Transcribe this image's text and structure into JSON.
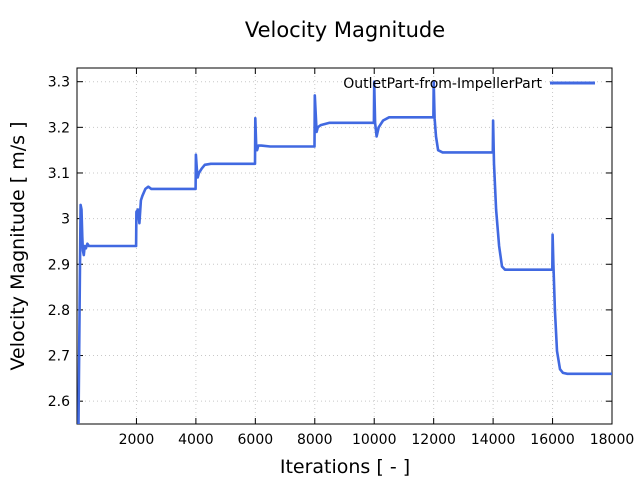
{
  "chart_data": {
    "type": "line",
    "title": "Velocity Magnitude",
    "xlabel": "Iterations [ - ]",
    "ylabel": "Velocity Magnitude [ m/s ]",
    "xlim": [
      0,
      18000
    ],
    "ylim": [
      2.55,
      3.33
    ],
    "xticks": [
      2000,
      4000,
      6000,
      8000,
      10000,
      12000,
      14000,
      16000,
      18000
    ],
    "xtick_labels": [
      "2000",
      "4000",
      "6000",
      "8000",
      "10000",
      "12000",
      "14000",
      "16000",
      "18000"
    ],
    "yticks": [
      2.6,
      2.7,
      2.8,
      2.9,
      3.0,
      3.1,
      3.2,
      3.3
    ],
    "ytick_labels": [
      "2.6",
      "2.7",
      "2.8",
      "2.9",
      "3",
      "3.1",
      "3.2",
      "3.3"
    ],
    "grid": true,
    "legend_position": "top-right",
    "series": [
      {
        "name": "OutletPart-from-ImpellerPart",
        "color": "#4169e1",
        "x": [
          50,
          100,
          120,
          150,
          180,
          200,
          230,
          260,
          300,
          350,
          400,
          500,
          800,
          1000,
          1500,
          1990,
          2000,
          2050,
          2100,
          2150,
          2200,
          2300,
          2400,
          2500,
          2700,
          3000,
          3100,
          3500,
          3990,
          4000,
          4030,
          4060,
          4100,
          4200,
          4300,
          4500,
          5000,
          5200,
          5990,
          6000,
          6030,
          6060,
          6100,
          6200,
          6500,
          7000,
          7100,
          7990,
          8000,
          8030,
          8060,
          8100,
          8200,
          8500,
          9000,
          9500,
          9990,
          10000,
          10030,
          10080,
          10150,
          10300,
          10500,
          11000,
          11990,
          12000,
          12030,
          12080,
          12150,
          12300,
          12500,
          13000,
          13990,
          14000,
          14030,
          14100,
          14200,
          14300,
          14400,
          14500,
          15000,
          15990,
          16000,
          16030,
          16080,
          16150,
          16250,
          16350,
          16500,
          17000,
          18000
        ],
        "values": [
          2.55,
          2.9,
          3.03,
          3.02,
          2.96,
          2.93,
          2.92,
          2.94,
          2.935,
          2.945,
          2.94,
          2.94,
          2.94,
          2.94,
          2.94,
          2.94,
          3.015,
          3.02,
          2.99,
          3.04,
          3.05,
          3.065,
          3.07,
          3.065,
          3.065,
          3.065,
          3.065,
          3.065,
          3.065,
          3.14,
          3.11,
          3.09,
          3.1,
          3.11,
          3.118,
          3.12,
          3.12,
          3.12,
          3.12,
          3.22,
          3.16,
          3.15,
          3.16,
          3.16,
          3.158,
          3.158,
          3.158,
          3.158,
          3.27,
          3.23,
          3.19,
          3.2,
          3.205,
          3.21,
          3.21,
          3.21,
          3.21,
          3.3,
          3.21,
          3.18,
          3.2,
          3.215,
          3.222,
          3.222,
          3.222,
          3.3,
          3.22,
          3.18,
          3.15,
          3.145,
          3.145,
          3.145,
          3.145,
          3.215,
          3.12,
          3.02,
          2.94,
          2.895,
          2.888,
          2.888,
          2.888,
          2.888,
          2.965,
          2.9,
          2.8,
          2.71,
          2.67,
          2.662,
          2.66,
          2.66,
          2.66
        ]
      }
    ]
  }
}
